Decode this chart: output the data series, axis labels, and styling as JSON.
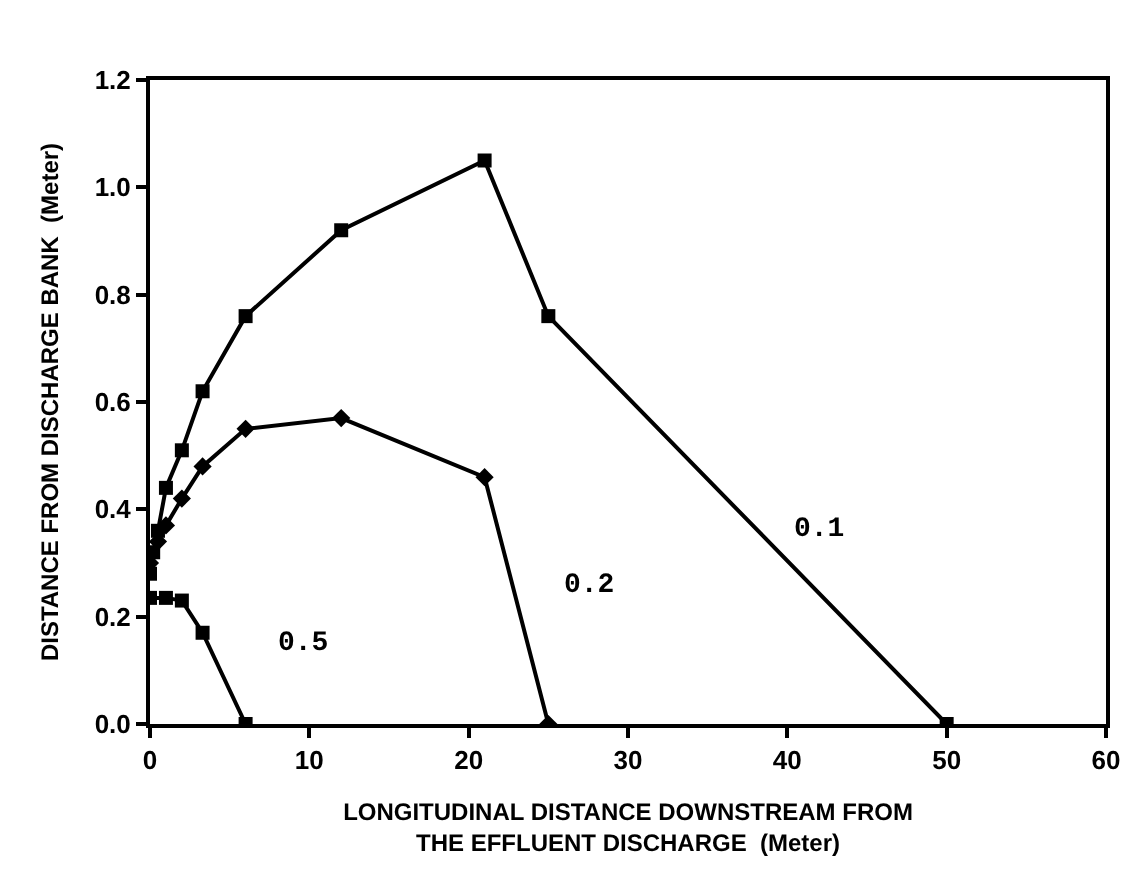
{
  "chart_data": {
    "type": "line",
    "xlabel": "LONGITUDINAL DISTANCE DOWNSTREAM FROM\nTHE EFFLUENT DISCHARGE  (Meter)",
    "ylabel": "DISTANCE FROM DISCHARGE BANK  (Meter)",
    "xlim": [
      0,
      60
    ],
    "xticks": [
      0,
      10,
      20,
      30,
      40,
      50,
      60
    ],
    "ylim": [
      0,
      1.2
    ],
    "yticks": [
      {
        "value": 0,
        "label": "0.0"
      },
      0.2,
      0.4,
      0.6,
      0.8,
      {
        "value": 1,
        "label": "1.0"
      },
      1.2
    ],
    "legend": false,
    "line_style": "solid",
    "series": [
      {
        "name": "0.1",
        "color": "#000000",
        "marker": "square",
        "x": [
          0,
          0.2,
          0.5,
          1,
          2,
          3.3,
          6,
          12,
          21,
          25,
          50
        ],
        "values": [
          0.28,
          0.32,
          0.36,
          0.44,
          0.51,
          0.62,
          0.76,
          0.92,
          1.05,
          0.76,
          0
        ]
      },
      {
        "name": "0.2",
        "color": "#000000",
        "marker": "diamond",
        "x": [
          0,
          0.5,
          1,
          2,
          3.3,
          6,
          12,
          21,
          25
        ],
        "values": [
          0.3,
          0.34,
          0.37,
          0.42,
          0.48,
          0.55,
          0.57,
          0.46,
          0
        ]
      },
      {
        "name": "0.5",
        "color": "#000000",
        "marker": "square",
        "x": [
          0,
          1,
          2,
          3.3,
          6
        ],
        "values": [
          0.235,
          0.235,
          0.23,
          0.17,
          0
        ]
      }
    ]
  }
}
